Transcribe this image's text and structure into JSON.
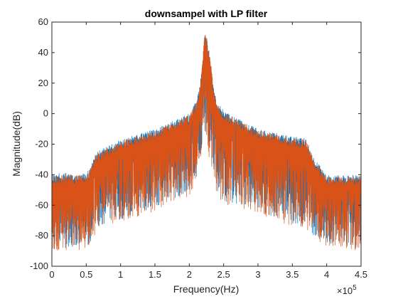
{
  "chart_data": {
    "type": "line",
    "title": "downsampel with LP filter",
    "xlabel": "Frequency(Hz)",
    "ylabel": "Magnitude(dB)",
    "x_exponent_label": "×10",
    "x_exponent_power": "5",
    "xlim": [
      0,
      4.5
    ],
    "ylim": [
      -100,
      60
    ],
    "x_scale_factor": 100000,
    "x_ticks": [
      0,
      0.5,
      1,
      1.5,
      2,
      2.5,
      3,
      3.5,
      4,
      4.5
    ],
    "x_tick_labels": [
      "0",
      "0.5",
      "1",
      "1.5",
      "2",
      "2.5",
      "3",
      "3.5",
      "4",
      "4.5"
    ],
    "y_ticks": [
      -100,
      -80,
      -60,
      -40,
      -20,
      0,
      20,
      40,
      60
    ],
    "y_tick_labels": [
      "-100",
      "-80",
      "-60",
      "-40",
      "-20",
      "0",
      "20",
      "40",
      "60"
    ],
    "grid": false,
    "series": [
      {
        "color": "#0072BD",
        "envelope": {
          "x": [
            0,
            0.5,
            0.55,
            0.65,
            1.0,
            1.5,
            2.0,
            2.1,
            2.15,
            2.2,
            2.22,
            2.25,
            2.28,
            2.32,
            2.35,
            2.4,
            2.5,
            3.0,
            3.5,
            3.7,
            3.8,
            4.0,
            4.5
          ],
          "upper": [
            -39,
            -39,
            -36,
            -25,
            -17,
            -10,
            0,
            8,
            18,
            38,
            52,
            50,
            44,
            32,
            18,
            8,
            2,
            -10,
            -15,
            -16,
            -28,
            -40,
            -40
          ],
          "lower": [
            -88,
            -88,
            -85,
            -75,
            -70,
            -62,
            -52,
            -44,
            -32,
            -15,
            -12,
            -15,
            -25,
            -35,
            -42,
            -50,
            -58,
            -64,
            -72,
            -75,
            -80,
            -85,
            -88
          ]
        }
      },
      {
        "color": "#D95319",
        "envelope": {
          "x": [
            0,
            0.5,
            0.55,
            0.65,
            1.0,
            1.5,
            2.0,
            2.1,
            2.15,
            2.2,
            2.22,
            2.25,
            2.28,
            2.32,
            2.35,
            2.4,
            2.5,
            3.0,
            3.5,
            3.7,
            3.8,
            4.0,
            4.5
          ],
          "upper": [
            -40,
            -40,
            -37,
            -26,
            -18,
            -11,
            -1,
            7,
            17,
            37,
            53,
            51,
            43,
            31,
            17,
            7,
            1,
            -11,
            -16,
            -17,
            -29,
            -41,
            -41
          ],
          "lower": [
            -90,
            -90,
            -87,
            -77,
            -72,
            -64,
            -54,
            -46,
            -34,
            -17,
            -14,
            -17,
            -27,
            -37,
            -44,
            -52,
            -60,
            -66,
            -74,
            -77,
            -82,
            -87,
            -90
          ]
        }
      }
    ]
  }
}
